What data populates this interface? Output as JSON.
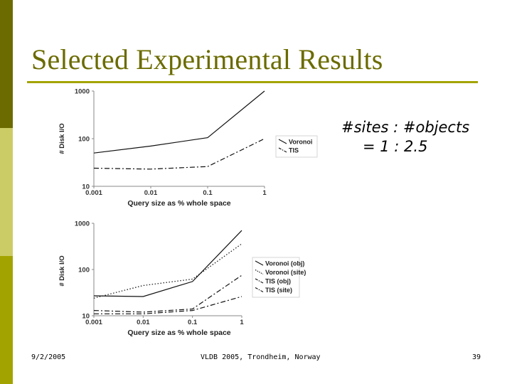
{
  "slide": {
    "title": "Selected Experimental Results",
    "ratio_line1": "#sites : #objects",
    "ratio_line2": "= 1 : 2.5",
    "footer_date": "9/2/2005",
    "footer_conference": "VLDB 2005, Trondheim, Norway",
    "footer_page": "39"
  },
  "colors": {
    "sidebar_dark": "#6b6b00",
    "sidebar_light": "#cccc66",
    "sidebar_mid": "#a3a300",
    "title": "#6b6b00"
  },
  "chart_data": [
    {
      "type": "line",
      "x_scale": "log",
      "y_scale": "log",
      "x": [
        0.001,
        0.01,
        0.1,
        1
      ],
      "x_tick_labels": [
        "0.001",
        "0.01",
        "0.1",
        "1"
      ],
      "y_tick_labels": [
        "10",
        "100",
        "1000"
      ],
      "ylim": [
        10,
        1000
      ],
      "xlabel": "Query size as % whole space",
      "ylabel": "# Disk I/O",
      "grid": false,
      "legend_position": "right",
      "series": [
        {
          "name": "Voronoi",
          "style": "solid",
          "values": [
            50,
            70,
            105,
            1000
          ]
        },
        {
          "name": "TIS",
          "style": "dashdot",
          "values": [
            24,
            23,
            26,
            100
          ]
        }
      ]
    },
    {
      "type": "line",
      "x_scale": "log",
      "y_scale": "log",
      "x": [
        0.001,
        0.01,
        0.1,
        1
      ],
      "x_tick_labels": [
        "0.001",
        "0.01",
        "0.1",
        "1"
      ],
      "y_tick_labels": [
        "10",
        "100",
        "1000"
      ],
      "ylim": [
        10,
        1000
      ],
      "xlabel": "Query size as % whole space",
      "ylabel": "# Disk I/O",
      "grid": false,
      "legend_position": "right",
      "series": [
        {
          "name": "Voronoi (obj)",
          "style": "solid",
          "values": [
            27,
            26,
            55,
            700
          ]
        },
        {
          "name": "Voronoi (site)",
          "style": "dotted",
          "values": [
            24,
            45,
            62,
            360
          ]
        },
        {
          "name": "TIS (obj)",
          "style": "dashdot",
          "values": [
            13,
            12,
            14,
            75
          ]
        },
        {
          "name": "TIS (site)",
          "style": "dashdot",
          "values": [
            11,
            11,
            13,
            26
          ]
        }
      ]
    }
  ]
}
